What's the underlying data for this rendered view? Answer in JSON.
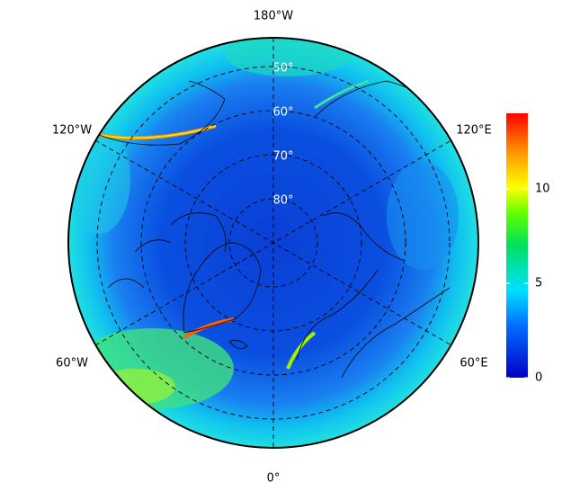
{
  "map": {
    "lon_labels": {
      "top": "180°W",
      "left_upper": "120°W",
      "right_upper": "120°E",
      "left_lower": "60°W",
      "right_lower": "60°E",
      "bottom": "0°"
    },
    "lat_labels": [
      "50°",
      "60°",
      "70°",
      "80°"
    ],
    "colorbar": {
      "range": [
        0,
        14
      ],
      "ticks": [
        0,
        5,
        10
      ]
    }
  }
}
